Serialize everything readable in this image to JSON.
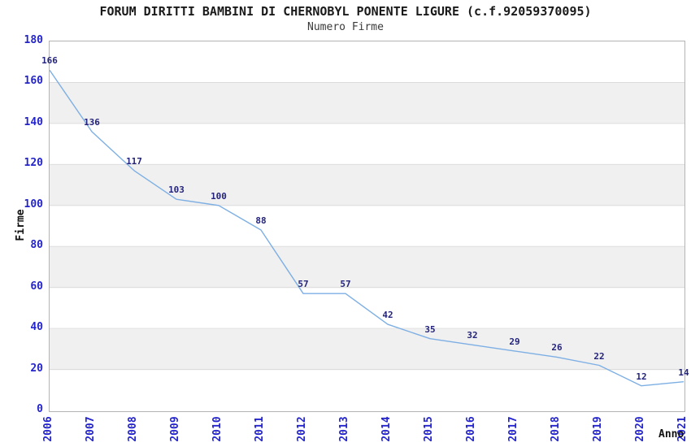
{
  "chart_data": {
    "type": "line",
    "title": "FORUM DIRITTI BAMBINI DI CHERNOBYL PONENTE LIGURE (c.f.92059370095)",
    "subtitle": "Numero Firme",
    "xlabel": "Anno",
    "ylabel": "Firme",
    "categories": [
      "2006",
      "2007",
      "2008",
      "2009",
      "2010",
      "2011",
      "2012",
      "2013",
      "2014",
      "2015",
      "2016",
      "2017",
      "2018",
      "2019",
      "2020",
      "2021"
    ],
    "values": [
      166,
      136,
      117,
      103,
      100,
      88,
      57,
      57,
      42,
      35,
      32,
      29,
      26,
      22,
      12,
      14
    ],
    "ylim": [
      0,
      180
    ],
    "ytick_step": 20,
    "yticks": [
      0,
      20,
      40,
      60,
      80,
      100,
      120,
      140,
      160,
      180
    ],
    "grid": "horizontal",
    "alternating_bands": true,
    "legend_position": "none",
    "point_labels_visible": true,
    "colors": {
      "line": "#7dafe4",
      "data_label": "#24247d",
      "tick_label": "#2424cc",
      "title": "#1a1a1a",
      "subtitle": "#3a3a3a",
      "axis_title": "#111111",
      "band": "#f0f0f0",
      "gridline": "#dcdcdc",
      "plot_border": "#b4b4b4",
      "background": "#ffffff"
    }
  }
}
